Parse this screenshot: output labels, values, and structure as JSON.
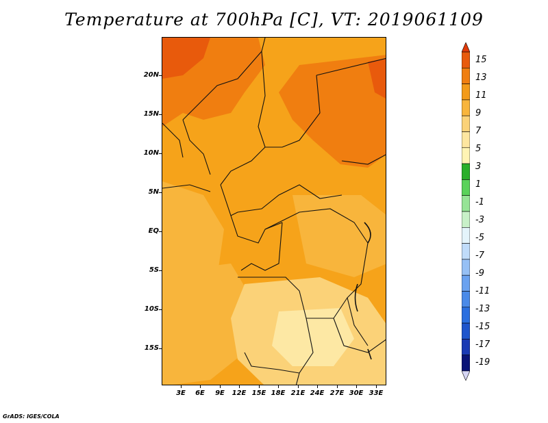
{
  "title": "Temperature at 700hPa [C], VT: 2019061109",
  "credit": "GrADS: IGES/COLA",
  "map": {
    "lat_labels": [
      "20N",
      "15N",
      "10N",
      "5N",
      "EQ",
      "5S",
      "10S",
      "15S"
    ],
    "lon_labels": [
      "3E",
      "6E",
      "9E",
      "12E",
      "15E",
      "18E",
      "21E",
      "24E",
      "27E",
      "30E",
      "33E"
    ],
    "colors": {
      "ocean_base": "#f6a31a",
      "warm_11": "#f07e10",
      "warm_13": "#e85a0c",
      "mild_9": "#f8b53c",
      "mild_7": "#fbd278",
      "cool_5": "#fde8a4",
      "border": "#111111"
    }
  },
  "colorbar": {
    "labels": [
      "15",
      "13",
      "11",
      "9",
      "7",
      "5",
      "3",
      "1",
      "-1",
      "-3",
      "-5",
      "-7",
      "-9",
      "-11",
      "-13",
      "-15",
      "-17",
      "-19"
    ],
    "colors": [
      "#d6d6f5",
      "#0a1478",
      "#1a3ab4",
      "#1e55cc",
      "#2a6fe0",
      "#4a8ae8",
      "#6aa2f0",
      "#96c0f5",
      "#c0dcfa",
      "#e4f4fb",
      "#c8f0c8",
      "#96e496",
      "#5ad25a",
      "#2aaf2a",
      "#fff4b4",
      "#fde6a0",
      "#fbd278",
      "#f8b53c",
      "#f39b1a",
      "#f07e10",
      "#e85a0c",
      "#e03a0a"
    ]
  }
}
